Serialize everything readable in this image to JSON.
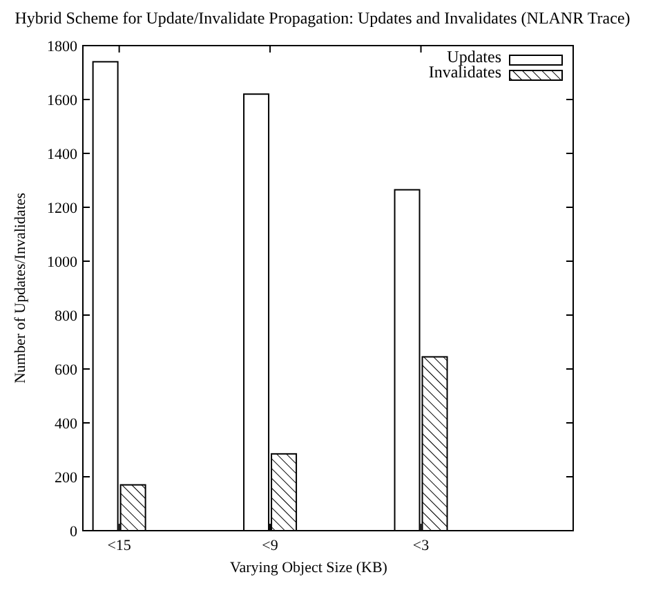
{
  "chart_data": {
    "type": "bar",
    "title": "Hybrid Scheme for Update/Invalidate Propagation: Updates and Invalidates (NLANR Trace)",
    "xlabel": "Varying Object Size (KB)",
    "ylabel": "Number of Updates/Invalidates",
    "categories": [
      "<15",
      "<9",
      "<3"
    ],
    "series": [
      {
        "name": "Updates",
        "color": "#ffffff",
        "values": [
          1740,
          1620,
          1265
        ]
      },
      {
        "name": "Invalidates",
        "color": "#000000",
        "values": [
          170,
          285,
          645
        ]
      }
    ],
    "ylim": [
      0,
      1800
    ],
    "yticks": [
      0,
      200,
      400,
      600,
      800,
      1000,
      1200,
      1400,
      1600,
      1800
    ],
    "grid": false,
    "legend": "top right"
  }
}
